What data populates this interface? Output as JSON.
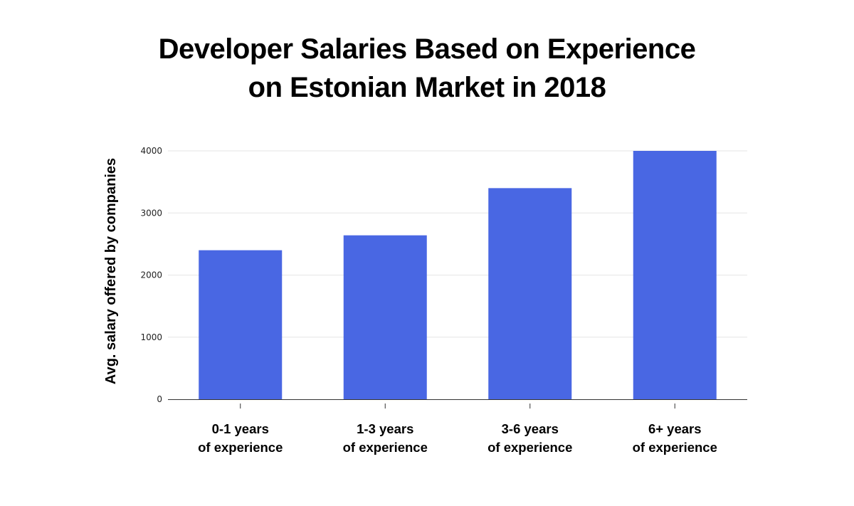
{
  "chart_data": {
    "type": "bar",
    "title": [
      "Developer Salaries Based on Experience",
      "on Estonian Market in 2018"
    ],
    "xlabel": "",
    "ylabel": "Avg. salary offered by companies",
    "categories": [
      [
        "0-1 years",
        "of experience"
      ],
      [
        "1-3 years",
        "of experience"
      ],
      [
        "3-6 years",
        "of experience"
      ],
      [
        "6+ years",
        "of experience"
      ]
    ],
    "values": [
      2400,
      2640,
      3400,
      4000
    ],
    "ylim": [
      0,
      4000
    ],
    "yticks": [
      0,
      1000,
      2000,
      3000,
      4000
    ],
    "bar_color": "#4967E3",
    "grid": true,
    "legend": "none"
  }
}
